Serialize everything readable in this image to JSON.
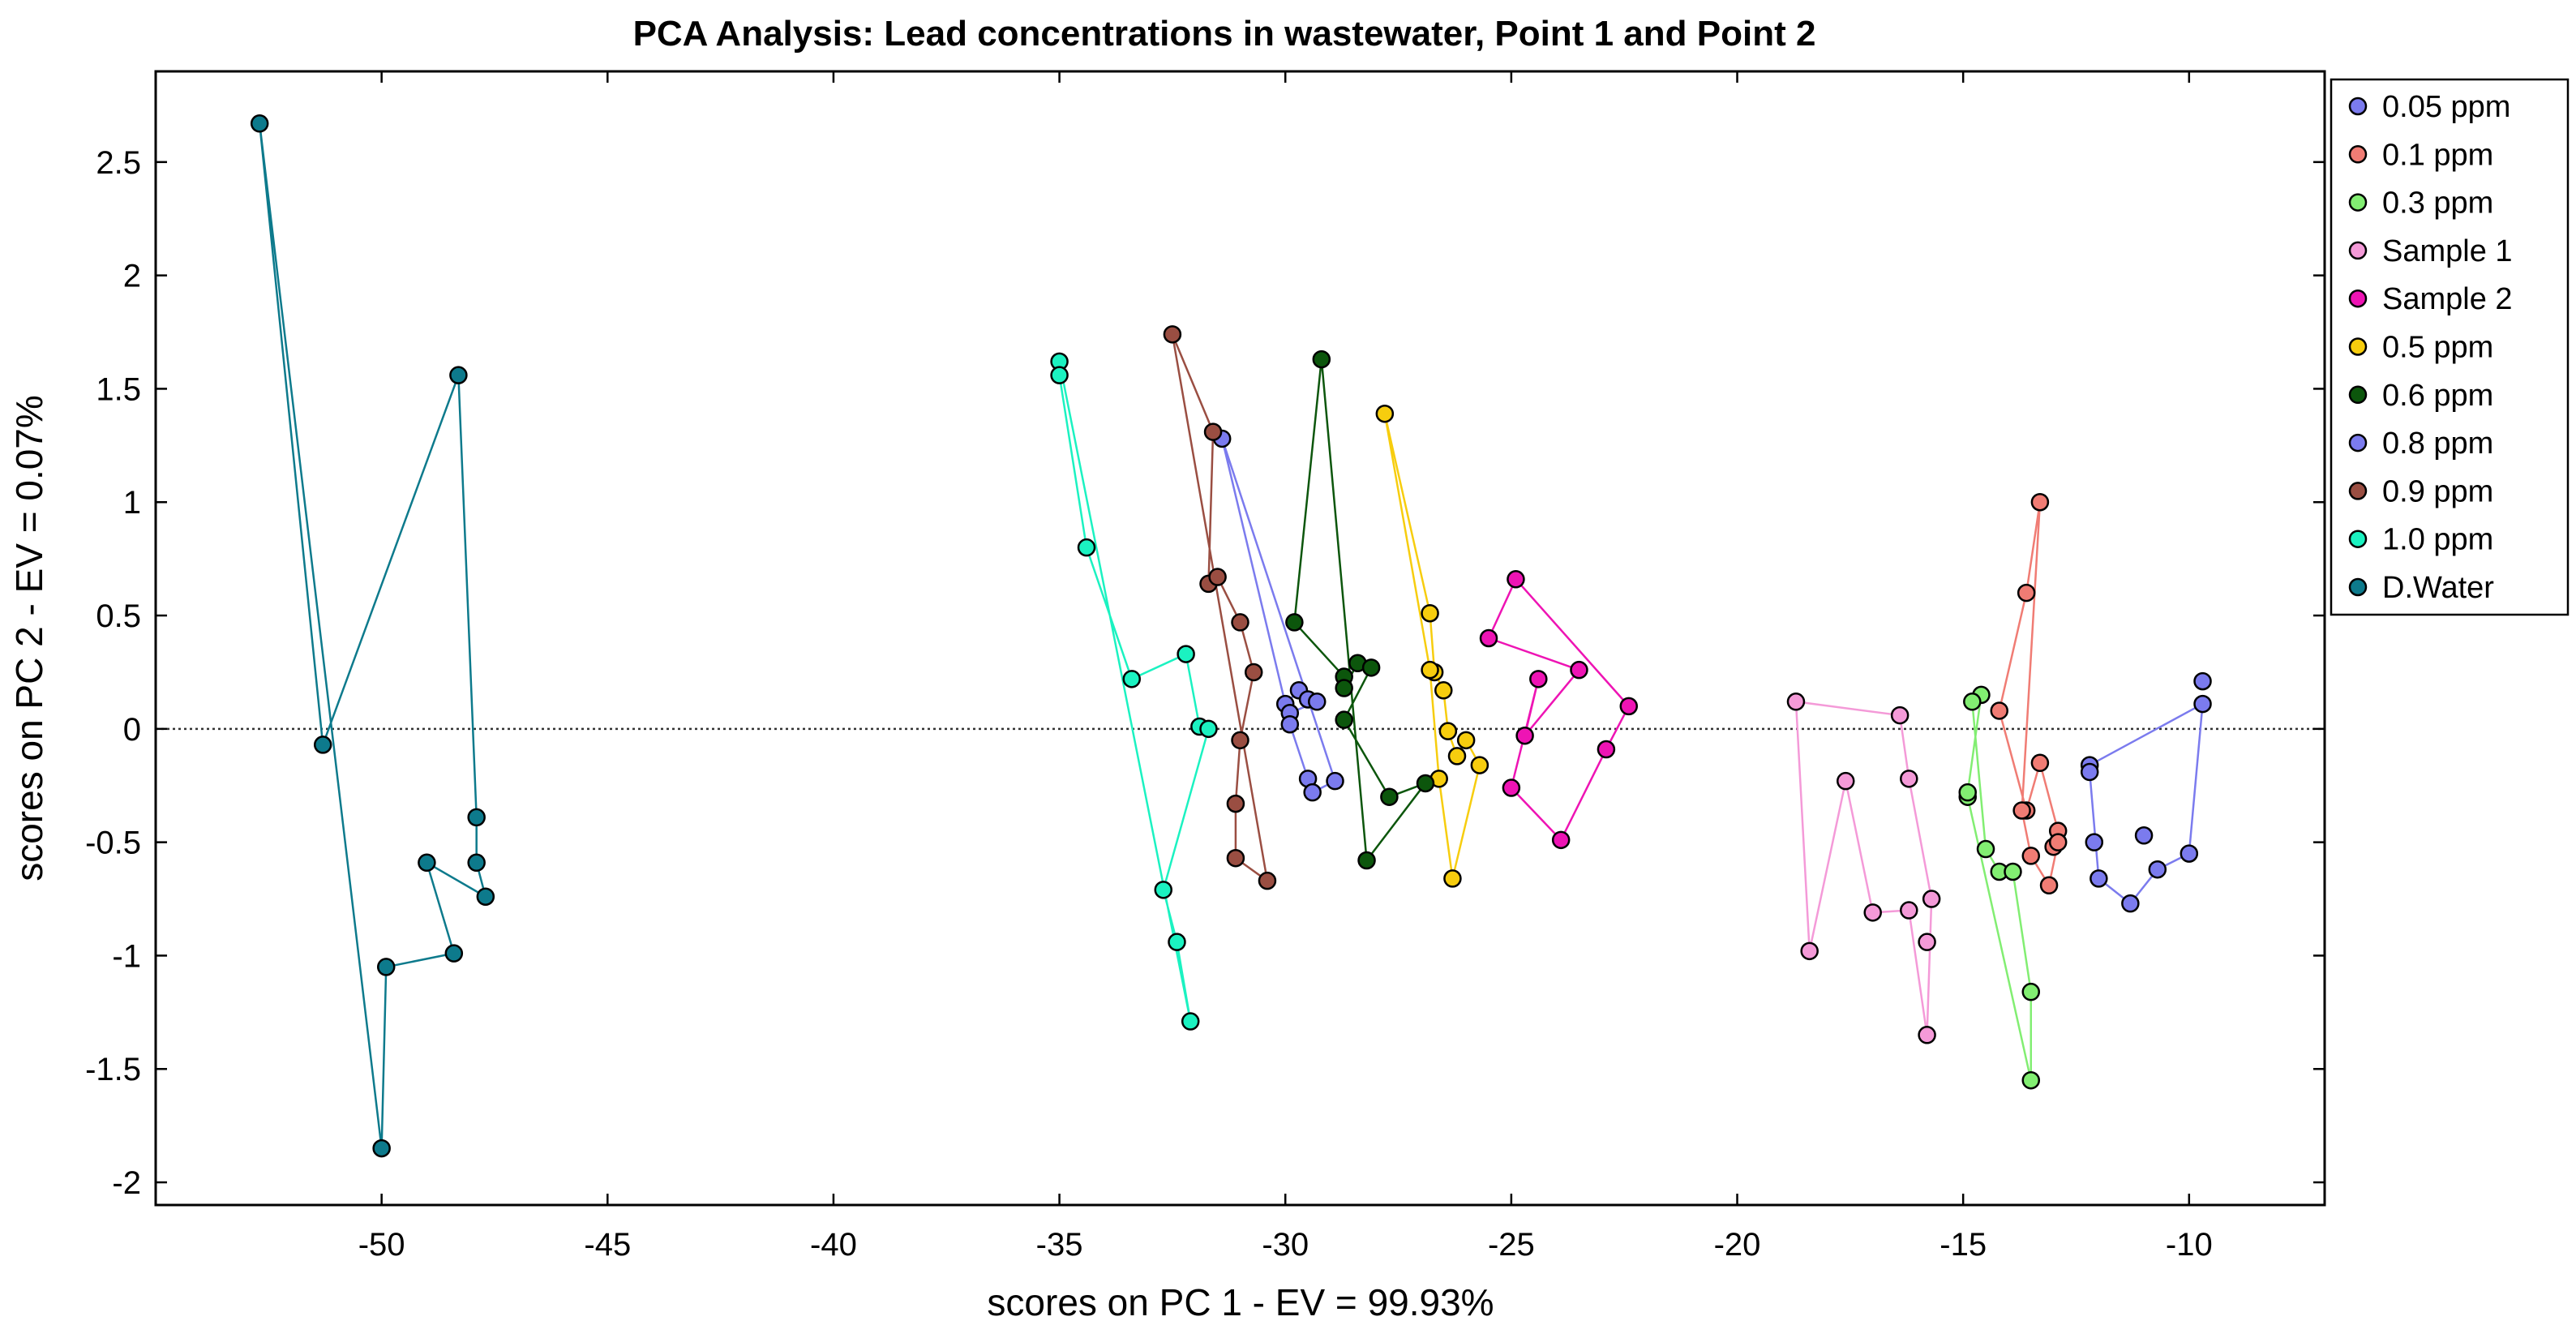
{
  "chart_data": {
    "type": "scatter",
    "title": "PCA Analysis: Lead concentrations in wastewater, Point 1 and Point 2",
    "xlabel": "scores on PC 1 - EV = 99.93%",
    "ylabel": "scores on PC 2 - EV = 0.07%",
    "xlim": [
      -55,
      -7
    ],
    "ylim": [
      -2.1,
      2.9
    ],
    "xticks": [
      -50,
      -45,
      -40,
      -35,
      -30,
      -25,
      -20,
      -15,
      -10
    ],
    "yticks": [
      -2,
      -1.5,
      -1,
      -0.5,
      0,
      0.5,
      1,
      1.5,
      2,
      2.5
    ],
    "reference_line": {
      "y": 0,
      "style": "dotted"
    },
    "legend_position": "outside-top-right",
    "series": [
      {
        "name": "0.05 ppm",
        "color": "#7B7BEE",
        "x": [
          -12.2,
          -12.2,
          -12.0,
          -11.3,
          -10.7,
          -10.0,
          -9.7
        ],
        "y": [
          -0.16,
          -0.19,
          -0.66,
          -0.77,
          -0.62,
          -0.55,
          0.11
        ],
        "hull": [
          -12.2,
          -12.2,
          -12.0,
          -11.3,
          -10.7,
          -10.0,
          -9.7,
          -9.7
        ],
        "hull_y": [
          -0.16,
          -0.19,
          -0.66,
          -0.77,
          -0.62,
          -0.55,
          0.11,
          0.21
        ],
        "extra_x": [
          -12.1,
          -11.0,
          -9.7
        ],
        "extra_y": [
          -0.5,
          -0.47,
          0.21
        ]
      },
      {
        "name": "0.1 ppm",
        "color": "#F07C74",
        "x": [
          -13.3,
          -13.6,
          -14.2,
          -13.6,
          -13.3,
          -12.9,
          -13.0,
          -12.9,
          -13.1,
          -13.5,
          -13.7
        ],
        "y": [
          1.0,
          0.6,
          0.08,
          -0.36,
          -0.15,
          -0.45,
          -0.52,
          -0.5,
          -0.69,
          -0.56,
          -0.36
        ]
      },
      {
        "name": "0.3 ppm",
        "color": "#82EE72",
        "x": [
          -14.6,
          -14.8,
          -14.5,
          -14.2,
          -13.9,
          -13.5,
          -13.5,
          -14.9,
          -14.9
        ],
        "y": [
          0.15,
          0.12,
          -0.53,
          -0.63,
          -0.63,
          -1.16,
          -1.55,
          -0.3,
          -0.28
        ]
      },
      {
        "name": "Sample 1",
        "color": "#F49AD8",
        "x": [
          -18.7,
          -16.4,
          -16.2,
          -15.7,
          -15.8,
          -16.2,
          -17.0,
          -17.6,
          -18.4
        ],
        "y": [
          0.12,
          0.06,
          -0.22,
          -0.75,
          -1.35,
          -0.8,
          -0.81,
          -0.23,
          -0.98
        ],
        "extra_x": [
          -15.8
        ],
        "extra_y": [
          -0.94
        ]
      },
      {
        "name": "Sample 2",
        "color": "#EE14B4",
        "x": [
          -25.5,
          -24.9,
          -22.4,
          -22.9,
          -23.9,
          -25.0,
          -24.4,
          -24.7,
          -23.5
        ],
        "y": [
          0.4,
          0.66,
          0.1,
          -0.09,
          -0.49,
          -0.26,
          0.22,
          -0.03,
          0.26
        ]
      },
      {
        "name": "0.5 ppm",
        "color": "#F7CD0E",
        "x": [
          -27.8,
          -26.8,
          -26.7,
          -26.5,
          -26.4,
          -26.2,
          -26.0,
          -25.7,
          -26.3,
          -26.6,
          -26.8
        ],
        "y": [
          1.39,
          0.51,
          0.25,
          0.17,
          -0.01,
          -0.12,
          -0.05,
          -0.16,
          -0.66,
          -0.22,
          0.26
        ]
      },
      {
        "name": "0.6 ppm",
        "color": "#0C560C",
        "x": [
          -29.2,
          -29.8,
          -28.7,
          -28.7,
          -28.4,
          -28.1,
          -28.7,
          -27.7,
          -26.9,
          -28.2
        ],
        "y": [
          1.63,
          0.47,
          0.23,
          0.18,
          0.29,
          0.27,
          0.04,
          -0.3,
          -0.24,
          -0.58
        ]
      },
      {
        "name": "0.8 ppm",
        "color": "#7B7BEE",
        "x": [
          -31.4,
          -30.0,
          -29.7,
          -29.5,
          -29.3,
          -29.9,
          -29.9,
          -29.5,
          -29.4,
          -28.9
        ],
        "y": [
          1.28,
          0.11,
          0.17,
          0.13,
          0.12,
          0.07,
          0.02,
          -0.22,
          -0.28,
          -0.23
        ]
      },
      {
        "name": "0.9 ppm",
        "color": "#9A4E42",
        "x": [
          -32.5,
          -31.6,
          -31.7,
          -31.5,
          -31.0,
          -30.7,
          -31.0,
          -31.1,
          -31.1,
          -30.4
        ],
        "y": [
          1.74,
          1.31,
          0.64,
          0.67,
          0.47,
          0.25,
          -0.05,
          -0.33,
          -0.57,
          -0.67
        ]
      },
      {
        "name": "1.0 ppm",
        "color": "#1BF2C1",
        "x": [
          -35.0,
          -35.0,
          -34.4,
          -33.4,
          -32.2,
          -31.9,
          -31.7,
          -32.7,
          -32.4,
          -32.1
        ],
        "y": [
          1.62,
          1.56,
          0.8,
          0.22,
          0.33,
          0.01,
          0.0,
          -0.71,
          -0.94,
          -1.29
        ]
      },
      {
        "name": "D.Water",
        "color": "#0D7A8C",
        "x": [
          -52.7,
          -51.3,
          -48.3,
          -47.9,
          -47.9,
          -47.7,
          -49.0,
          -48.4,
          -49.9,
          -50.0
        ],
        "y": [
          2.67,
          -0.07,
          1.56,
          -0.39,
          -0.59,
          -0.74,
          -0.59,
          -0.99,
          -1.05,
          -1.85
        ]
      }
    ]
  }
}
